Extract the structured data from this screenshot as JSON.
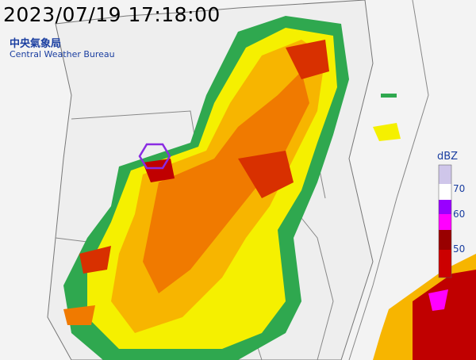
{
  "header": {
    "timestamp": "2023/07/19 17:18:00",
    "agency_zh": "中央氣象局",
    "agency_en": "Central Weather Bureau"
  },
  "legend": {
    "unit": "dBZ",
    "labels": [
      "70",
      "60",
      "50"
    ]
  }
}
